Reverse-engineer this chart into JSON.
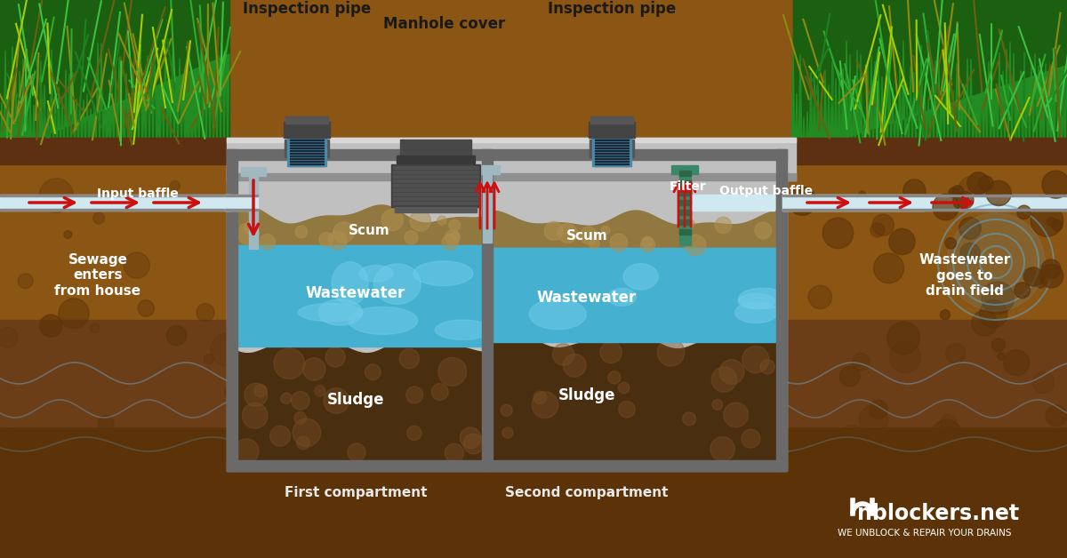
{
  "bg_color": "#FFFFFF",
  "soil_mid": "#8B5513",
  "soil_dark": "#5C3308",
  "soil_light": "#A06020",
  "grass_green": "#2E8B22",
  "grass_light": "#4AAA30",
  "grass_yellow": "#8B7A14",
  "concrete_color": "#C0C0C0",
  "concrete_dark": "#909090",
  "tank_wall": "#6A6A6A",
  "tank_inner": "#B8B8B8",
  "water_blue": "#45B0D0",
  "water_light": "#70CCE8",
  "water_dark": "#3090B0",
  "scum_brown": "#907840",
  "scum_light": "#B09050",
  "sludge_dark": "#4A2E10",
  "sludge_mid": "#5C3818",
  "sludge_light": "#7A5028",
  "pipe_gray": "#505050",
  "pipe_dark": "#303030",
  "pipe_blue_ridge": "#4A8AAA",
  "baffle_color": "#A0B8C0",
  "filter_green": "#3A8868",
  "arrow_red": "#CC1010",
  "text_white": "#FFFFFF",
  "text_dark": "#1A1A1A",
  "text_gray": "#444444",
  "brand_color": "#FFFFFF",
  "figsize": [
    12.0,
    6.28
  ],
  "dpi": 100,
  "labels": {
    "insp_pipe_left": "Inspection pipe",
    "insp_pipe_right": "Inspection pipe",
    "manhole": "Manhole cover",
    "input_baffle": "Input baffle",
    "output_baffle": "Output baffle",
    "filter": "Filter",
    "scum_left": "Scum",
    "scum_right": "Scum",
    "wastewater_left": "Wastewater",
    "wastewater_right": "Wastewater",
    "sludge_left": "Sludge",
    "sludge_right": "Sludge",
    "sewage": "Sewage\nenters\nfrom house",
    "drain": "Wastewater\ngoes to\ndrain field",
    "first_comp": "First compartment",
    "second_comp": "Second compartment",
    "brand": "nblockers.net",
    "brand_sub": "WE UNBLOCK & REPAIR YOUR DRAINS"
  }
}
